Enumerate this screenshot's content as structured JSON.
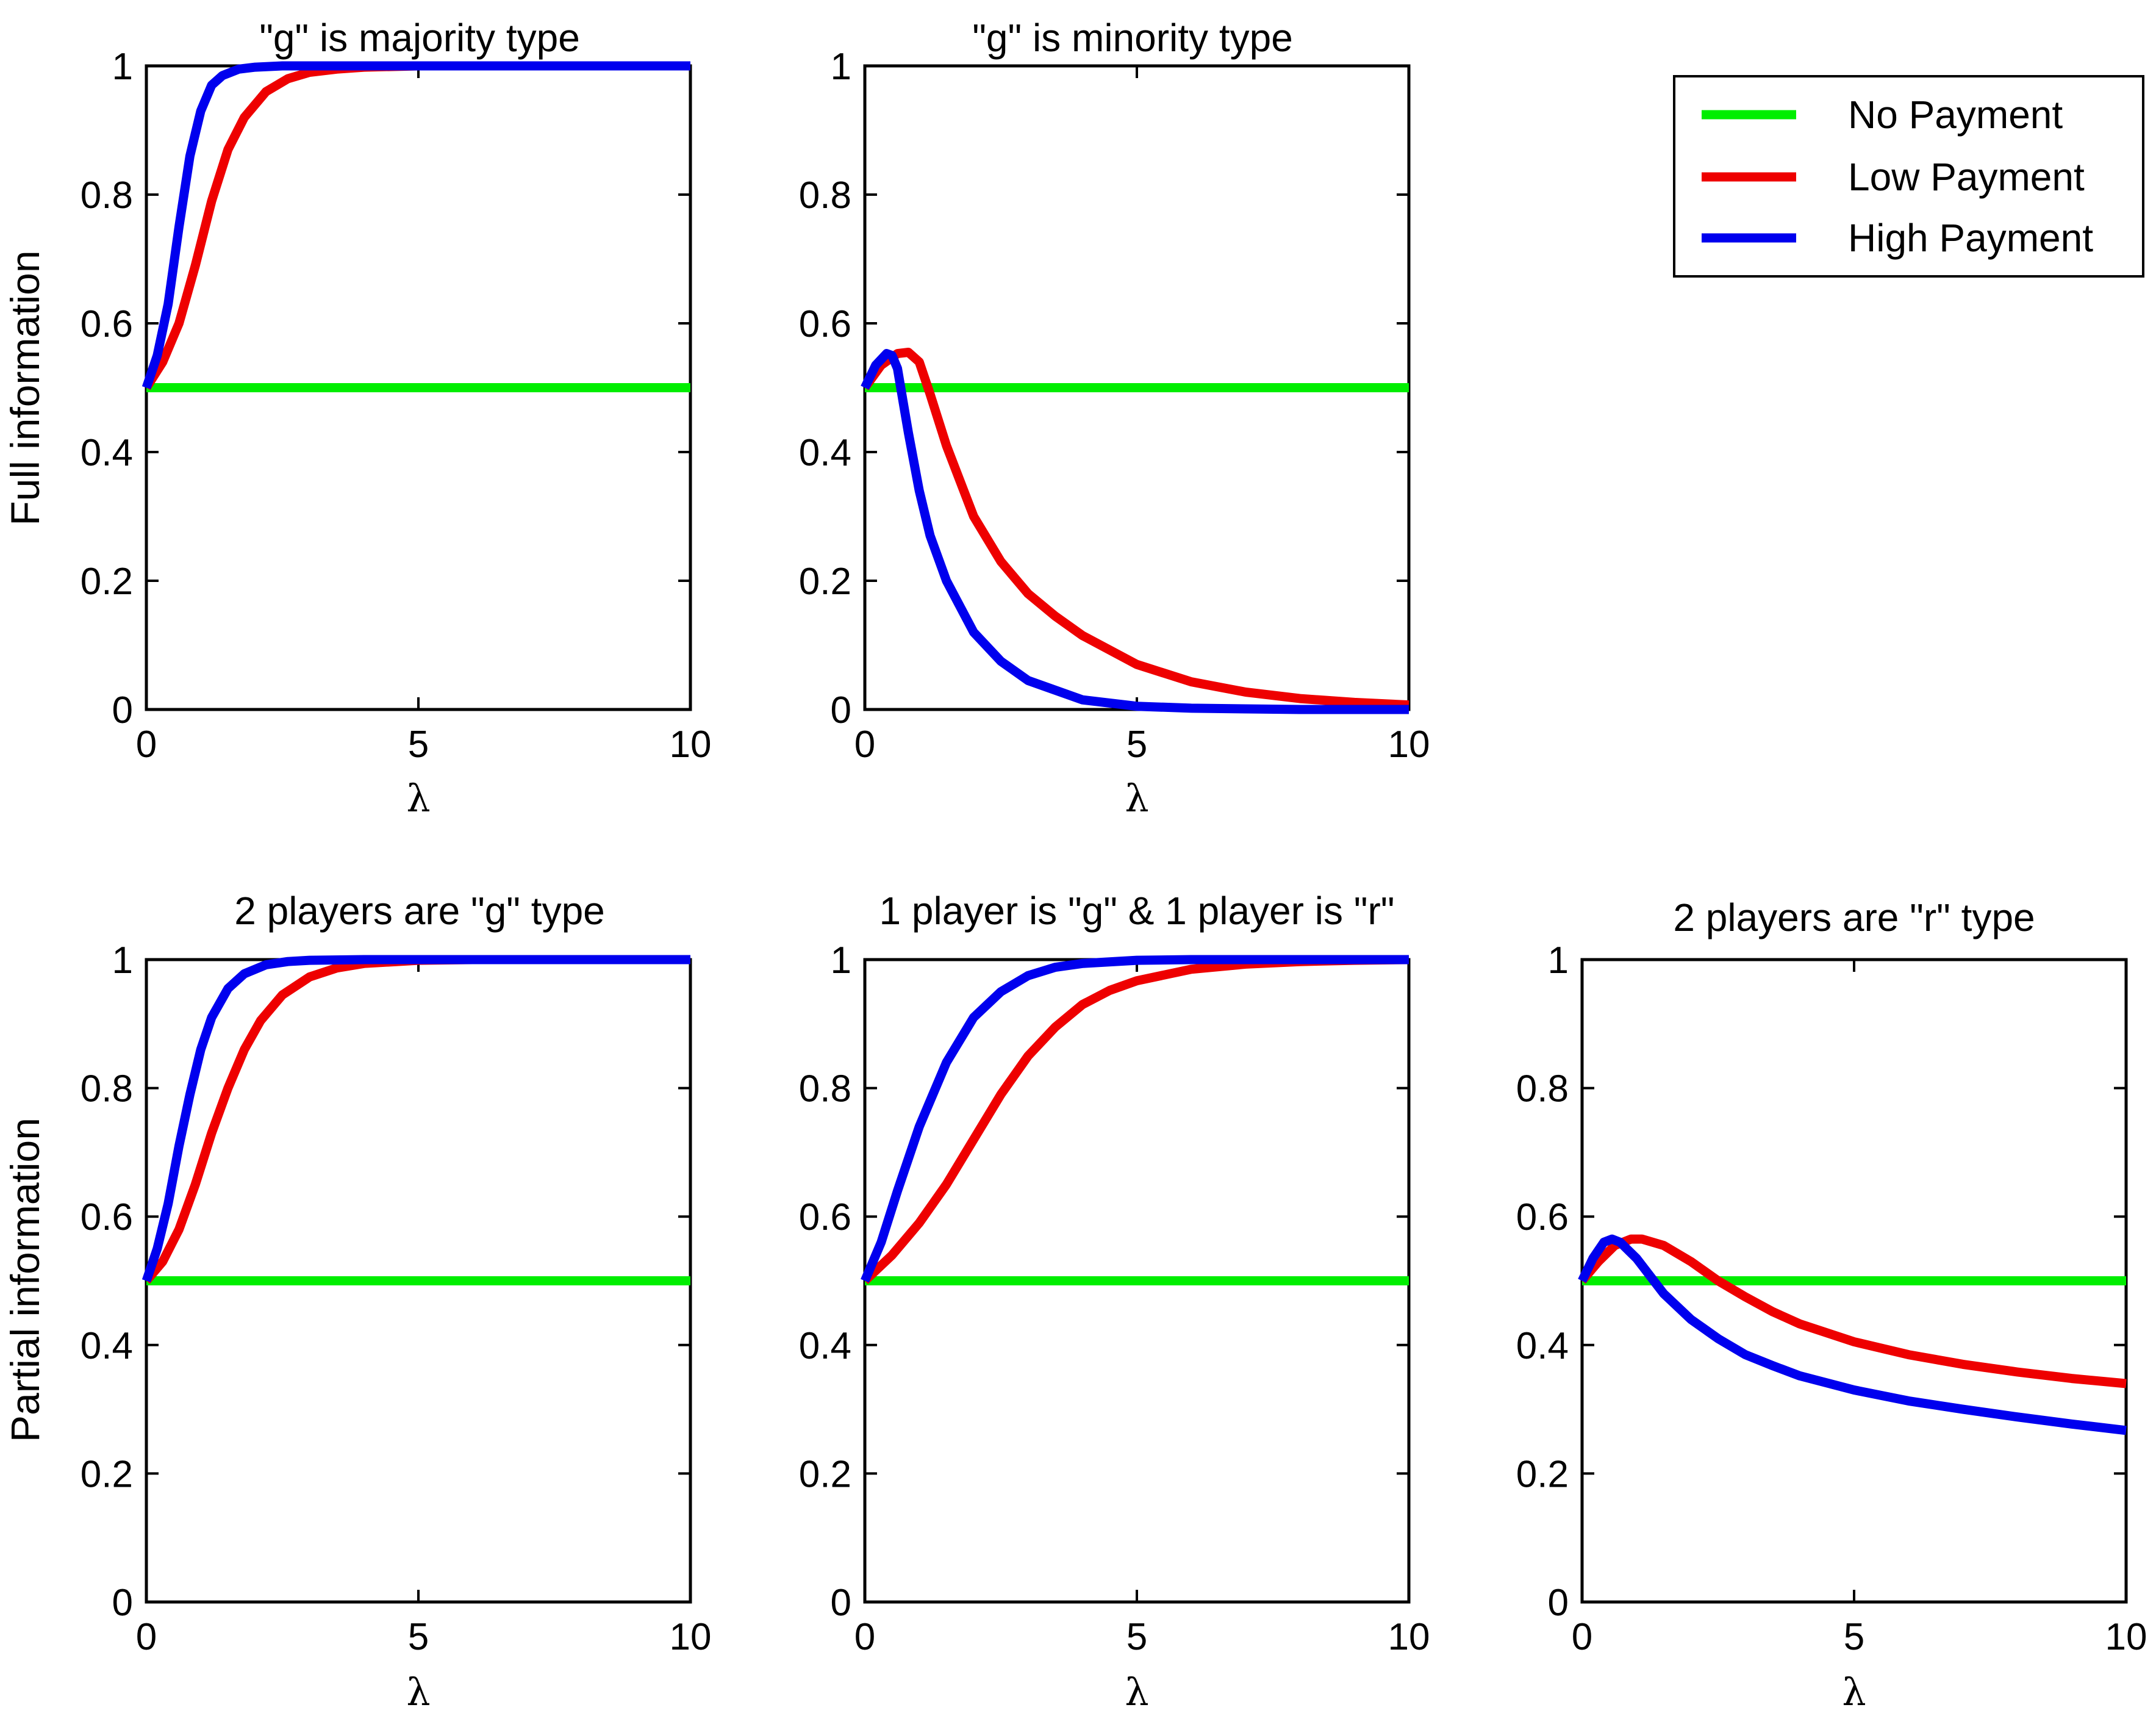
{
  "figure": {
    "row_labels": [
      "Full information",
      "Partial information"
    ]
  },
  "legend": {
    "entries": [
      {
        "label": "No Payment",
        "color": "#00ee00"
      },
      {
        "label": "Low Payment",
        "color": "#ee0000"
      },
      {
        "label": "High Payment",
        "color": "#0000ee"
      }
    ]
  },
  "chart_data": [
    {
      "type": "line",
      "title": "\"g\" is majority type",
      "xlabel": "λ",
      "ylabel": "Full information",
      "xlim": [
        0,
        10
      ],
      "ylim": [
        0,
        1
      ],
      "xticks": [
        0,
        5,
        10
      ],
      "yticks": [
        0,
        0.2,
        0.4,
        0.6,
        0.8,
        1
      ],
      "xtick_labels": [
        "0",
        "5",
        "10"
      ],
      "ytick_labels": [
        "0",
        "0.2",
        "0.4",
        "0.6",
        "0.8",
        "1"
      ],
      "series": [
        {
          "name": "No Payment",
          "color": "#00ee00",
          "x": [
            0,
            10
          ],
          "y": [
            0.5,
            0.5
          ]
        },
        {
          "name": "Low Payment",
          "color": "#ee0000",
          "x": [
            0,
            0.3,
            0.6,
            0.9,
            1.2,
            1.5,
            1.8,
            2.2,
            2.6,
            3.0,
            3.5,
            4,
            5,
            6,
            8,
            10
          ],
          "y": [
            0.5,
            0.54,
            0.6,
            0.69,
            0.79,
            0.87,
            0.92,
            0.96,
            0.98,
            0.99,
            0.995,
            0.998,
            1,
            1,
            1,
            1
          ]
        },
        {
          "name": "High Payment",
          "color": "#0000ee",
          "x": [
            0,
            0.2,
            0.4,
            0.6,
            0.8,
            1.0,
            1.2,
            1.4,
            1.7,
            2.0,
            2.5,
            3,
            4,
            6,
            8,
            10
          ],
          "y": [
            0.5,
            0.55,
            0.63,
            0.75,
            0.86,
            0.93,
            0.97,
            0.985,
            0.995,
            0.998,
            1,
            1,
            1,
            1,
            1,
            1
          ]
        }
      ]
    },
    {
      "type": "line",
      "title": "\"g\" is minority type",
      "xlabel": "λ",
      "ylabel": "",
      "xlim": [
        0,
        10
      ],
      "ylim": [
        0,
        1
      ],
      "xticks": [
        0,
        5,
        10
      ],
      "yticks": [
        0,
        0.2,
        0.4,
        0.6,
        0.8,
        1
      ],
      "xtick_labels": [
        "0",
        "5",
        "10"
      ],
      "ytick_labels": [
        "0",
        "0.2",
        "0.4",
        "0.6",
        "0.8",
        "1"
      ],
      "series": [
        {
          "name": "No Payment",
          "color": "#00ee00",
          "x": [
            0,
            10
          ],
          "y": [
            0.5,
            0.5
          ]
        },
        {
          "name": "Low Payment",
          "color": "#ee0000",
          "x": [
            0,
            0.3,
            0.6,
            0.8,
            1.0,
            1.2,
            1.5,
            2,
            2.5,
            3,
            3.5,
            4,
            5,
            6,
            7,
            8,
            9,
            10
          ],
          "y": [
            0.5,
            0.535,
            0.553,
            0.555,
            0.54,
            0.49,
            0.41,
            0.3,
            0.23,
            0.18,
            0.145,
            0.115,
            0.07,
            0.043,
            0.027,
            0.017,
            0.011,
            0.007
          ]
        },
        {
          "name": "High Payment",
          "color": "#0000ee",
          "x": [
            0,
            0.2,
            0.4,
            0.5,
            0.6,
            0.7,
            0.8,
            1.0,
            1.2,
            1.5,
            2,
            2.5,
            3,
            4,
            5,
            6,
            8,
            10
          ],
          "y": [
            0.5,
            0.535,
            0.553,
            0.55,
            0.53,
            0.48,
            0.43,
            0.34,
            0.27,
            0.2,
            0.12,
            0.075,
            0.045,
            0.015,
            0.005,
            0.002,
            0,
            0
          ]
        }
      ]
    },
    {
      "type": "line",
      "title": "2 players are \"g\" type",
      "xlabel": "λ",
      "ylabel": "Partial information",
      "xlim": [
        0,
        10
      ],
      "ylim": [
        0,
        1
      ],
      "xticks": [
        0,
        5,
        10
      ],
      "yticks": [
        0,
        0.2,
        0.4,
        0.6,
        0.8,
        1
      ],
      "xtick_labels": [
        "0",
        "5",
        "10"
      ],
      "ytick_labels": [
        "0",
        "0.2",
        "0.4",
        "0.6",
        "0.8",
        "1"
      ],
      "series": [
        {
          "name": "No Payment",
          "color": "#00ee00",
          "x": [
            0,
            10
          ],
          "y": [
            0.5,
            0.5
          ]
        },
        {
          "name": "Low Payment",
          "color": "#ee0000",
          "x": [
            0,
            0.3,
            0.6,
            0.9,
            1.2,
            1.5,
            1.8,
            2.1,
            2.5,
            3,
            3.5,
            4,
            5,
            6,
            8,
            10
          ],
          "y": [
            0.5,
            0.53,
            0.58,
            0.65,
            0.73,
            0.8,
            0.86,
            0.905,
            0.945,
            0.973,
            0.987,
            0.994,
            0.999,
            1,
            1,
            1
          ]
        },
        {
          "name": "High Payment",
          "color": "#0000ee",
          "x": [
            0,
            0.2,
            0.4,
            0.6,
            0.8,
            1.0,
            1.2,
            1.5,
            1.8,
            2.2,
            2.6,
            3,
            4,
            6,
            8,
            10
          ],
          "y": [
            0.5,
            0.55,
            0.62,
            0.71,
            0.79,
            0.86,
            0.91,
            0.955,
            0.978,
            0.992,
            0.997,
            0.999,
            1,
            1,
            1,
            1
          ]
        }
      ]
    },
    {
      "type": "line",
      "title": "1 player is \"g\" & 1 player is \"r\"",
      "xlabel": "λ",
      "ylabel": "",
      "xlim": [
        0,
        10
      ],
      "ylim": [
        0,
        1
      ],
      "xticks": [
        0,
        5,
        10
      ],
      "yticks": [
        0,
        0.2,
        0.4,
        0.6,
        0.8,
        1
      ],
      "xtick_labels": [
        "0",
        "5",
        "10"
      ],
      "ytick_labels": [
        "0",
        "0.2",
        "0.4",
        "0.6",
        "0.8",
        "1"
      ],
      "series": [
        {
          "name": "No Payment",
          "color": "#00ee00",
          "x": [
            0,
            10
          ],
          "y": [
            0.5,
            0.5
          ]
        },
        {
          "name": "Low Payment",
          "color": "#ee0000",
          "x": [
            0,
            0.5,
            1,
            1.5,
            2,
            2.5,
            3,
            3.5,
            4,
            4.5,
            5,
            6,
            7,
            8,
            9,
            10
          ],
          "y": [
            0.5,
            0.54,
            0.59,
            0.65,
            0.72,
            0.79,
            0.85,
            0.895,
            0.93,
            0.952,
            0.967,
            0.985,
            0.993,
            0.997,
            0.999,
            1
          ]
        },
        {
          "name": "High Payment",
          "color": "#0000ee",
          "x": [
            0,
            0.3,
            0.6,
            1,
            1.5,
            2,
            2.5,
            3,
            3.5,
            4,
            5,
            6,
            8,
            10
          ],
          "y": [
            0.5,
            0.56,
            0.64,
            0.74,
            0.84,
            0.91,
            0.95,
            0.975,
            0.988,
            0.994,
            0.999,
            1,
            1,
            1
          ]
        }
      ]
    },
    {
      "type": "line",
      "title": "2 players are \"r\" type",
      "xlabel": "λ",
      "ylabel": "",
      "xlim": [
        0,
        10
      ],
      "ylim": [
        0,
        1
      ],
      "xticks": [
        0,
        5,
        10
      ],
      "yticks": [
        0,
        0.2,
        0.4,
        0.6,
        0.8,
        1
      ],
      "xtick_labels": [
        "0",
        "5",
        "10"
      ],
      "ytick_labels": [
        "0",
        "0.2",
        "0.4",
        "0.6",
        "0.8",
        "1"
      ],
      "series": [
        {
          "name": "No Payment",
          "color": "#00ee00",
          "x": [
            0,
            10
          ],
          "y": [
            0.5,
            0.5
          ]
        },
        {
          "name": "Low Payment",
          "color": "#ee0000",
          "x": [
            0,
            0.3,
            0.6,
            0.9,
            1.1,
            1.5,
            2,
            2.5,
            3,
            3.5,
            4,
            5,
            6,
            7,
            8,
            9,
            10
          ],
          "y": [
            0.5,
            0.53,
            0.555,
            0.565,
            0.565,
            0.555,
            0.53,
            0.5,
            0.475,
            0.452,
            0.433,
            0.405,
            0.385,
            0.37,
            0.358,
            0.348,
            0.34
          ]
        },
        {
          "name": "High Payment",
          "color": "#0000ee",
          "x": [
            0,
            0.2,
            0.4,
            0.55,
            0.7,
            1,
            1.5,
            2,
            2.5,
            3,
            3.5,
            4,
            5,
            6,
            7,
            8,
            9,
            10
          ],
          "y": [
            0.5,
            0.535,
            0.56,
            0.565,
            0.56,
            0.535,
            0.48,
            0.44,
            0.41,
            0.385,
            0.368,
            0.352,
            0.33,
            0.313,
            0.3,
            0.288,
            0.277,
            0.267
          ]
        }
      ]
    }
  ]
}
